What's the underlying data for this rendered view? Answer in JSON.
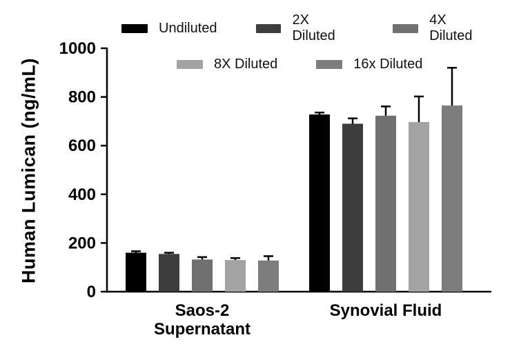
{
  "axis": {
    "y_label": "Human Lumican (ng/mL)",
    "y_ticks": [
      "0",
      "200",
      "400",
      "600",
      "800",
      "1000"
    ]
  },
  "chart_data": {
    "type": "bar",
    "title": "",
    "xlabel": "",
    "ylabel": "Human Lumican (ng/mL)",
    "ylim": [
      0,
      1000
    ],
    "y_ticks": [
      0,
      200,
      400,
      600,
      800,
      1000
    ],
    "grid": false,
    "legend_position": "top",
    "categories": [
      "Saos-2 Supernatant",
      "Synovial Fluid"
    ],
    "category_lines": [
      [
        "Saos-2",
        "Supernatant"
      ],
      [
        "Synovial Fluid"
      ]
    ],
    "series": [
      {
        "name": "Undiluted",
        "color": "#000000",
        "values": [
          160,
          728
        ],
        "errors": [
          6,
          8
        ]
      },
      {
        "name": "2X Diluted",
        "color": "#3d3d3d",
        "values": [
          155,
          690
        ],
        "errors": [
          5,
          22
        ]
      },
      {
        "name": "4X Diluted",
        "color": "#707070",
        "values": [
          132,
          723
        ],
        "errors": [
          10,
          38
        ]
      },
      {
        "name": "8X Diluted",
        "color": "#a3a3a3",
        "values": [
          130,
          697
        ],
        "errors": [
          8,
          105
        ]
      },
      {
        "name": "16x Diluted",
        "color": "#7d7d7d",
        "values": [
          128,
          765
        ],
        "errors": [
          18,
          155
        ]
      }
    ],
    "error_bar_color": "#000000",
    "axis_color": "#000000"
  }
}
